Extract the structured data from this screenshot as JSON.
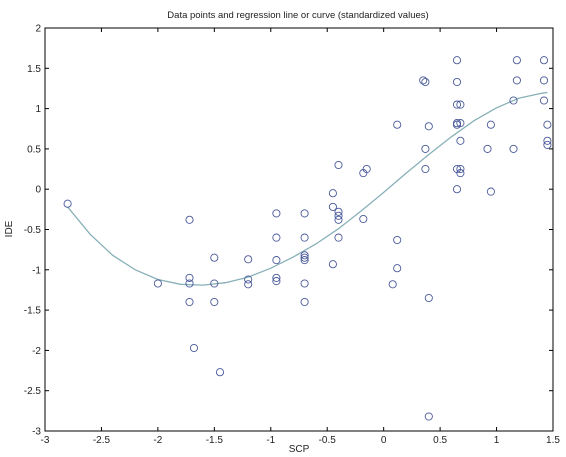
{
  "chart_data": {
    "type": "scatter",
    "title": "Data points and regression line or curve (standardized values)",
    "xlabel": "SCP",
    "ylabel": "IDE",
    "xlim": [
      -3,
      1.5
    ],
    "ylim": [
      -3,
      2
    ],
    "xticks": [
      "-3",
      "-2.5",
      "-2",
      "-1.5",
      "-1",
      "-0.5",
      "0",
      "0.5",
      "1",
      "1.5"
    ],
    "yticks": [
      "-3",
      "-2.5",
      "-2",
      "-1.5",
      "-1",
      "-0.5",
      "0",
      "0.5",
      "1",
      "1.5",
      "2"
    ],
    "grid": false,
    "colors": {
      "points": "#4a5a9a",
      "curve": "#88b0b8",
      "axes": "#000000"
    },
    "points": [
      [
        -2.8,
        -0.18
      ],
      [
        -2.0,
        -1.17
      ],
      [
        -1.72,
        -0.38
      ],
      [
        -1.72,
        -1.1
      ],
      [
        -1.72,
        -1.17
      ],
      [
        -1.72,
        -1.4
      ],
      [
        -1.68,
        -1.97
      ],
      [
        -1.5,
        -0.85
      ],
      [
        -1.5,
        -1.17
      ],
      [
        -1.5,
        -1.4
      ],
      [
        -1.45,
        -2.27
      ],
      [
        -1.2,
        -0.87
      ],
      [
        -1.2,
        -1.12
      ],
      [
        -1.2,
        -1.18
      ],
      [
        -0.95,
        -0.3
      ],
      [
        -0.95,
        -0.6
      ],
      [
        -0.95,
        -0.88
      ],
      [
        -0.95,
        -1.1
      ],
      [
        -0.95,
        -1.14
      ],
      [
        -0.7,
        -0.3
      ],
      [
        -0.7,
        -0.6
      ],
      [
        -0.7,
        -0.82
      ],
      [
        -0.7,
        -0.85
      ],
      [
        -0.7,
        -0.88
      ],
      [
        -0.7,
        -1.17
      ],
      [
        -0.7,
        -1.4
      ],
      [
        -0.45,
        -0.05
      ],
      [
        -0.45,
        -0.22
      ],
      [
        -0.45,
        -0.93
      ],
      [
        -0.4,
        0.3
      ],
      [
        -0.4,
        -0.28
      ],
      [
        -0.4,
        -0.33
      ],
      [
        -0.4,
        -0.38
      ],
      [
        -0.4,
        -0.6
      ],
      [
        -0.18,
        0.2
      ],
      [
        -0.18,
        -0.37
      ],
      [
        -0.15,
        0.25
      ],
      [
        0.08,
        -1.18
      ],
      [
        0.12,
        0.8
      ],
      [
        0.12,
        -0.63
      ],
      [
        0.12,
        -0.98
      ],
      [
        0.35,
        1.35
      ],
      [
        0.37,
        1.33
      ],
      [
        0.37,
        0.5
      ],
      [
        0.37,
        0.25
      ],
      [
        0.4,
        0.78
      ],
      [
        0.4,
        -1.35
      ],
      [
        0.4,
        -2.82
      ],
      [
        0.65,
        1.6
      ],
      [
        0.65,
        1.33
      ],
      [
        0.65,
        1.05
      ],
      [
        0.65,
        0.82
      ],
      [
        0.65,
        0.8
      ],
      [
        0.65,
        0.25
      ],
      [
        0.65,
        0.0
      ],
      [
        0.68,
        1.05
      ],
      [
        0.68,
        0.82
      ],
      [
        0.68,
        0.6
      ],
      [
        0.68,
        0.25
      ],
      [
        0.68,
        0.2
      ],
      [
        0.92,
        0.5
      ],
      [
        0.95,
        0.8
      ],
      [
        0.95,
        -0.03
      ],
      [
        1.15,
        0.5
      ],
      [
        1.15,
        1.1
      ],
      [
        1.18,
        1.6
      ],
      [
        1.18,
        1.35
      ],
      [
        1.42,
        1.6
      ],
      [
        1.42,
        1.35
      ],
      [
        1.42,
        1.1
      ],
      [
        1.45,
        0.8
      ],
      [
        1.45,
        0.6
      ],
      [
        1.45,
        0.55
      ]
    ],
    "curve": [
      [
        -2.8,
        -0.22
      ],
      [
        -2.6,
        -0.56
      ],
      [
        -2.4,
        -0.82
      ],
      [
        -2.2,
        -1.0
      ],
      [
        -2.0,
        -1.12
      ],
      [
        -1.8,
        -1.18
      ],
      [
        -1.6,
        -1.19
      ],
      [
        -1.4,
        -1.16
      ],
      [
        -1.2,
        -1.09
      ],
      [
        -1.0,
        -0.98
      ],
      [
        -0.8,
        -0.84
      ],
      [
        -0.6,
        -0.68
      ],
      [
        -0.4,
        -0.49
      ],
      [
        -0.2,
        -0.27
      ],
      [
        0.0,
        -0.04
      ],
      [
        0.2,
        0.2
      ],
      [
        0.4,
        0.43
      ],
      [
        0.6,
        0.65
      ],
      [
        0.8,
        0.85
      ],
      [
        1.0,
        1.01
      ],
      [
        1.2,
        1.13
      ],
      [
        1.4,
        1.19
      ],
      [
        1.45,
        1.2
      ]
    ]
  }
}
